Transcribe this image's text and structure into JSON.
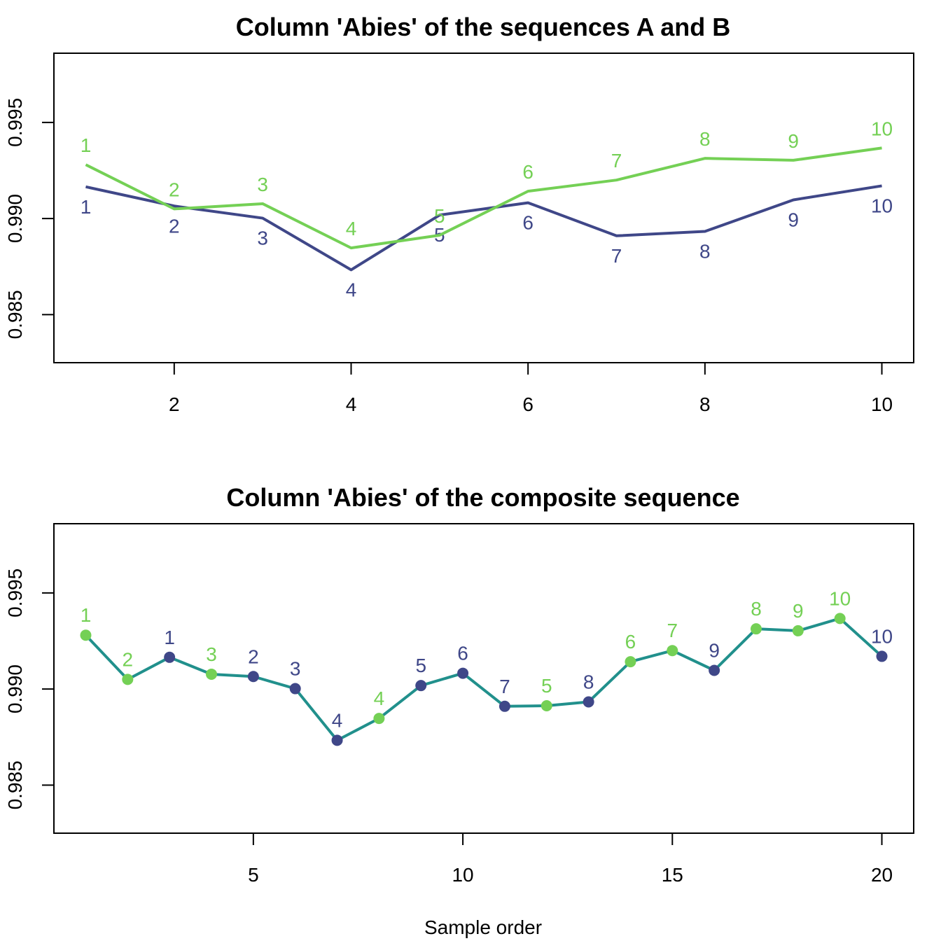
{
  "colors": {
    "seq_a": "#3f4788",
    "seq_b": "#74d055",
    "composite_line": "#21908c",
    "axis": "#000000"
  },
  "chart_data": [
    {
      "type": "line",
      "title": "Column 'Abies' of the sequences A and B",
      "xlabel": "",
      "ylabel": "",
      "xlim": [
        0.64,
        10.36
      ],
      "ylim": [
        0.9825,
        0.9986
      ],
      "x_ticks": [
        2,
        4,
        6,
        8,
        10
      ],
      "x_tick_labels": [
        "2",
        "4",
        "6",
        "8",
        "10"
      ],
      "y_ticks": [
        0.985,
        0.99,
        0.995
      ],
      "y_tick_labels": [
        "0.985",
        "0.990",
        "0.995"
      ],
      "series": [
        {
          "key": "A",
          "color": "#3f4788",
          "label_position": "below",
          "x": [
            1,
            2,
            3,
            4,
            5,
            6,
            7,
            8,
            9,
            10
          ],
          "values": [
            0.99165,
            0.99065,
            0.99002,
            0.98733,
            0.99018,
            0.99082,
            0.9891,
            0.98933,
            0.99097,
            0.9917
          ],
          "point_labels": [
            "1",
            "2",
            "3",
            "4",
            "5",
            "6",
            "7",
            "8",
            "9",
            "10"
          ]
        },
        {
          "key": "B",
          "color": "#74d055",
          "label_position": "above",
          "x": [
            1,
            2,
            3,
            4,
            5,
            6,
            7,
            8,
            9,
            10
          ],
          "values": [
            0.9928,
            0.9905,
            0.99077,
            0.98847,
            0.98913,
            0.99142,
            0.992,
            0.99313,
            0.99303,
            0.99367
          ],
          "point_labels": [
            "1",
            "2",
            "3",
            "4",
            "5",
            "6",
            "7",
            "8",
            "9",
            "10"
          ]
        }
      ]
    },
    {
      "type": "line",
      "title": "Column 'Abies' of the composite sequence",
      "xlabel": "Sample order",
      "ylabel": "",
      "xlim": [
        0.24,
        20.76
      ],
      "ylim": [
        0.9825,
        0.9986
      ],
      "x_ticks": [
        5,
        10,
        15,
        20
      ],
      "x_tick_labels": [
        "5",
        "10",
        "15",
        "20"
      ],
      "y_ticks": [
        0.985,
        0.99,
        0.995
      ],
      "y_tick_labels": [
        "0.985",
        "0.990",
        "0.995"
      ],
      "line_color": "#21908c",
      "x": [
        1,
        2,
        3,
        4,
        5,
        6,
        7,
        8,
        9,
        10,
        11,
        12,
        13,
        14,
        15,
        16,
        17,
        18,
        19,
        20
      ],
      "values": [
        0.9928,
        0.9905,
        0.99165,
        0.99077,
        0.99065,
        0.99002,
        0.98733,
        0.98847,
        0.99018,
        0.99082,
        0.9891,
        0.98913,
        0.98933,
        0.99142,
        0.992,
        0.99097,
        0.99313,
        0.99303,
        0.99367,
        0.9917
      ],
      "point_labels": [
        "1",
        "2",
        "1",
        "3",
        "2",
        "3",
        "4",
        "4",
        "5",
        "6",
        "7",
        "5",
        "8",
        "6",
        "7",
        "9",
        "8",
        "9",
        "10",
        "10"
      ],
      "point_colors": [
        "#74d055",
        "#74d055",
        "#3f4788",
        "#74d055",
        "#3f4788",
        "#3f4788",
        "#3f4788",
        "#74d055",
        "#3f4788",
        "#3f4788",
        "#3f4788",
        "#74d055",
        "#3f4788",
        "#74d055",
        "#74d055",
        "#3f4788",
        "#74d055",
        "#74d055",
        "#74d055",
        "#3f4788"
      ]
    }
  ]
}
